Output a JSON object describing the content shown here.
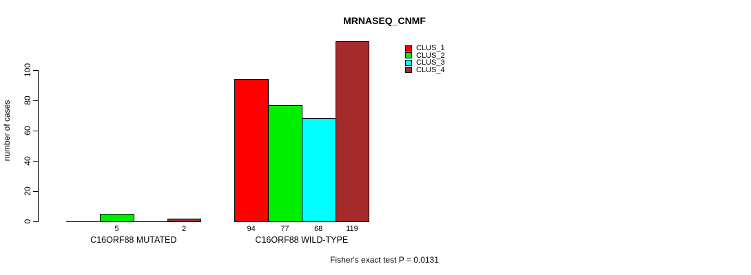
{
  "chart_data": {
    "type": "bar",
    "title": "MRNASEQ_CNMF",
    "ylabel": "number of cases",
    "xlabel": "",
    "annotation": "Fisher's exact test P = 0.0131",
    "categories": [
      "C16ORF88 MUTATED",
      "C16ORF88 WILD-TYPE"
    ],
    "series": [
      {
        "name": "CLUS_1",
        "color": "#FF0000",
        "values": [
          0,
          94
        ]
      },
      {
        "name": "CLUS_2",
        "color": "#00EE00",
        "values": [
          5,
          77
        ]
      },
      {
        "name": "CLUS_3",
        "color": "#00FFFF",
        "values": [
          0,
          68
        ]
      },
      {
        "name": "CLUS_4",
        "color": "#A52A2A",
        "values": [
          2,
          119
        ]
      }
    ],
    "bar_value_labels": [
      [
        "",
        "5",
        "",
        "2"
      ],
      [
        "94",
        "77",
        "68",
        "119"
      ]
    ],
    "yticks": [
      0,
      20,
      40,
      60,
      80,
      100
    ],
    "ylim": [
      0,
      120
    ],
    "grid": false,
    "legend_position": "top-right",
    "background_color": "#ffffff",
    "text_color": "#000000"
  }
}
